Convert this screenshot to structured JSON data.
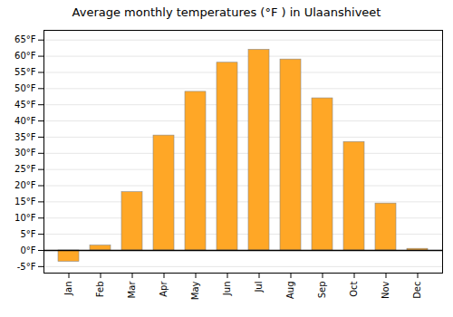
{
  "chart_data": {
    "type": "bar",
    "title": "Average monthly temperatures (°F ) in Ulaanshiveet",
    "categories": [
      "Jan",
      "Feb",
      "Mar",
      "Apr",
      "May",
      "Jun",
      "Jul",
      "Aug",
      "Sep",
      "Oct",
      "Nov",
      "Dec"
    ],
    "values": [
      -3.5,
      1.5,
      18,
      35.5,
      49,
      58,
      62,
      59,
      47,
      33.5,
      14.5,
      0.5
    ],
    "color": "#FFA726",
    "ylim": [
      -7,
      68
    ],
    "yticks": [
      {
        "value": -5,
        "label": "-5°F"
      },
      {
        "value": 0,
        "label": "0°F"
      },
      {
        "value": 5,
        "label": "5°F"
      },
      {
        "value": 10,
        "label": "10°F"
      },
      {
        "value": 15,
        "label": "15°F"
      },
      {
        "value": 20,
        "label": "20°F"
      },
      {
        "value": 25,
        "label": "25°F"
      },
      {
        "value": 30,
        "label": "30°F"
      },
      {
        "value": 35,
        "label": "35°F"
      },
      {
        "value": 40,
        "label": "40°F"
      },
      {
        "value": 45,
        "label": "45°F"
      },
      {
        "value": 50,
        "label": "50°F"
      },
      {
        "value": 55,
        "label": "55°F"
      },
      {
        "value": 60,
        "label": "60°F"
      },
      {
        "value": 65,
        "label": "65°F"
      }
    ],
    "grid": true
  }
}
